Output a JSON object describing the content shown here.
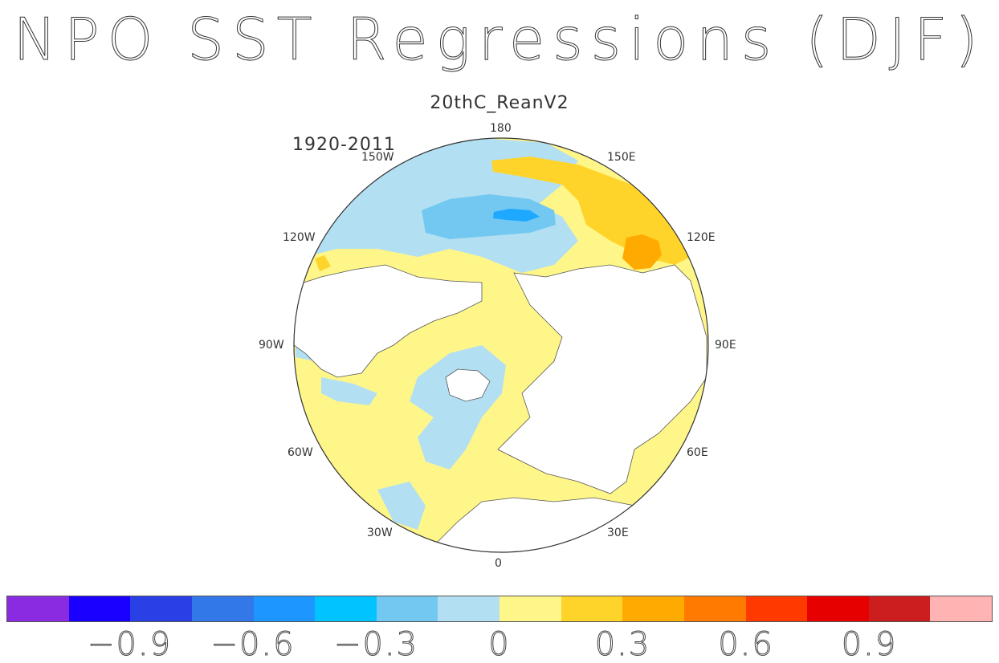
{
  "title": "NPO SST Regressions (DJF)",
  "subtitle": "20thC_ReanV2",
  "period": "1920-2011",
  "longitude_labels": {
    "lon_0": "0",
    "lon_30e": "30E",
    "lon_60e": "60E",
    "lon_90e": "90E",
    "lon_120e": "120E",
    "lon_150e": "150E",
    "lon_180": "180",
    "lon_150w": "150W",
    "lon_120w": "120W",
    "lon_90w": "90W",
    "lon_60w": "60W",
    "lon_30w": "30W"
  },
  "colorbar": {
    "colors": [
      "#8a2be2",
      "#1a00ff",
      "#2a40e6",
      "#3378e8",
      "#1e96ff",
      "#00c3ff",
      "#73c8f2",
      "#b3dff2",
      "#fff68a",
      "#ffd42a",
      "#ffaa00",
      "#ff7a00",
      "#ff3a00",
      "#e60000",
      "#cc1e1e",
      "#ffb3b3"
    ],
    "labels": [
      "−0.9",
      "−0.6",
      "−0.3",
      "0",
      "0.3",
      "0.6",
      "0.9"
    ],
    "label_values": [
      -0.9,
      -0.6,
      -0.3,
      0,
      0.3,
      0.6,
      0.9
    ],
    "levels": [
      -1.05,
      -0.9,
      -0.75,
      -0.6,
      -0.45,
      -0.3,
      -0.15,
      0,
      0.15,
      0.3,
      0.45,
      0.6,
      0.75,
      0.9,
      1.05
    ]
  },
  "colors": {
    "land": "#ffffff",
    "coast": "#555555",
    "neg_weak": "#b3dff2",
    "neg_mid": "#73c8f2",
    "neg_strong": "#1ea8ff",
    "pos_weak": "#fff68a",
    "pos_mid": "#ffd42a",
    "pos_strong": "#ffaa00"
  }
}
